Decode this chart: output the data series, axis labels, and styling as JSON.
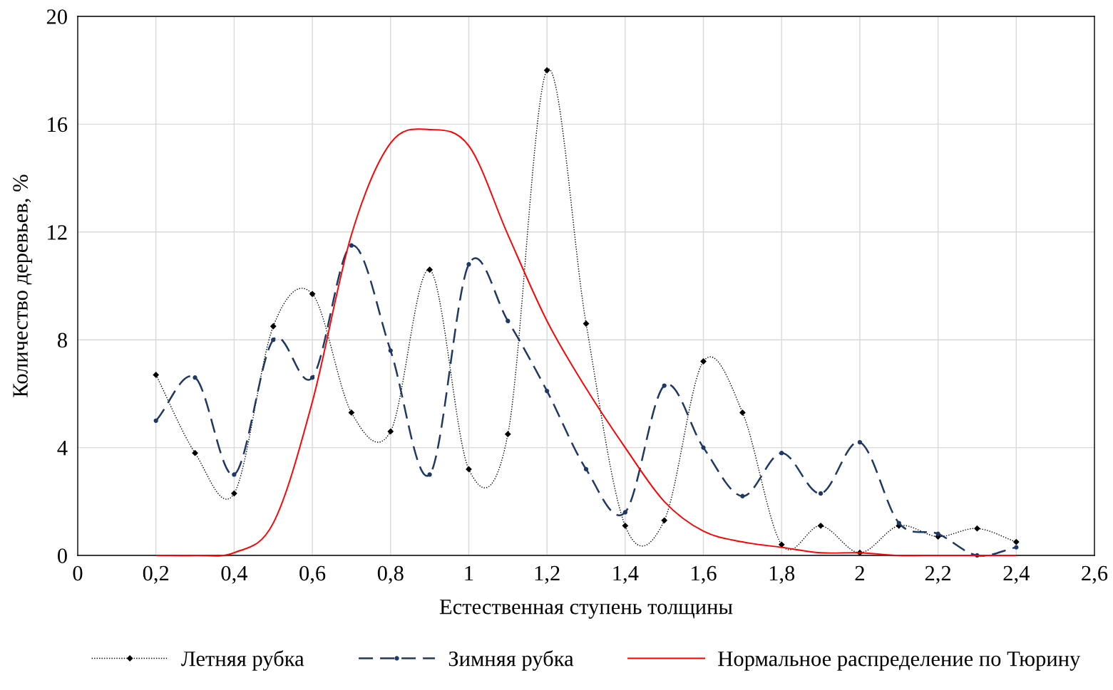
{
  "chart_data": {
    "type": "line",
    "xlabel": "Естественная ступень толщины",
    "ylabel": "Количество деревьев, %",
    "x": [
      0.2,
      0.3,
      0.4,
      0.5,
      0.6,
      0.7,
      0.8,
      0.9,
      1.0,
      1.1,
      1.2,
      1.3,
      1.4,
      1.5,
      1.6,
      1.7,
      1.8,
      1.9,
      2.0,
      2.1,
      2.2,
      2.3,
      2.4
    ],
    "series": [
      {
        "name": "Летняя рубка",
        "color": "#000000",
        "marker": "diamond",
        "line_style": "dotted",
        "values": [
          6.7,
          3.8,
          2.3,
          8.5,
          9.7,
          5.3,
          4.6,
          10.6,
          3.2,
          4.5,
          18.0,
          8.6,
          1.1,
          1.3,
          7.2,
          5.3,
          0.4,
          1.1,
          0.1,
          1.1,
          0.7,
          1.0,
          0.5
        ]
      },
      {
        "name": "Зимняя рубка",
        "color": "#1f3864",
        "marker": "circle",
        "line_style": "dashed",
        "values": [
          5.0,
          6.6,
          3.0,
          8.0,
          6.6,
          11.5,
          7.6,
          3.0,
          10.8,
          8.7,
          6.1,
          3.2,
          1.6,
          6.3,
          4.0,
          2.2,
          3.8,
          2.3,
          4.2,
          1.2,
          0.8,
          0.0,
          0.3
        ]
      },
      {
        "name": "Нормальное распределение по Тюрину",
        "color": "#ff0000",
        "marker": "none",
        "line_style": "solid",
        "values": [
          0.0,
          0.0,
          0.1,
          1.2,
          5.7,
          11.9,
          15.3,
          15.8,
          15.2,
          11.9,
          8.7,
          6.2,
          4.0,
          2.0,
          0.9,
          0.5,
          0.3,
          0.1,
          0.1,
          0.0,
          0.0,
          0.0,
          0.0
        ]
      }
    ],
    "xlim": [
      0,
      2.6
    ],
    "xticks": [
      0,
      {
        "value": 0.2,
        "label": "0,2"
      },
      {
        "value": 0.4,
        "label": "0,4"
      },
      {
        "value": 0.6,
        "label": "0,6"
      },
      {
        "value": 0.8,
        "label": "0,8"
      },
      1,
      {
        "value": 1.2,
        "label": "1,2"
      },
      {
        "value": 1.4,
        "label": "1,4"
      },
      {
        "value": 1.6,
        "label": "1,6"
      },
      {
        "value": 1.8,
        "label": "1,8"
      },
      2,
      {
        "value": 2.2,
        "label": "2,2"
      },
      {
        "value": 2.4,
        "label": "2,4"
      },
      {
        "value": 2.6,
        "label": "2,6"
      }
    ],
    "ylim": [
      0,
      20
    ],
    "yticks": [
      0,
      4,
      8,
      12,
      16,
      20
    ],
    "grid": true,
    "legend": "bottom"
  }
}
